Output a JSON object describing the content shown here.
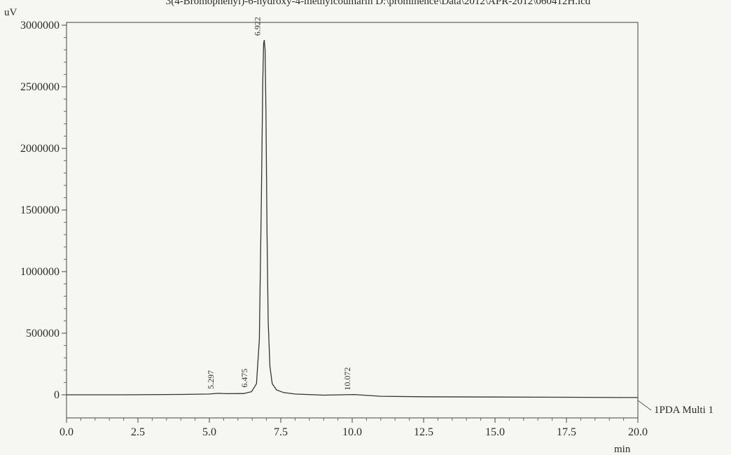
{
  "chart_data": {
    "type": "line",
    "title": "3(4-Bromophenyl)-6-hydroxy-4-methylcoumarin D:\\prominence\\Data\\2012\\APR-2012\\060412H.lcd",
    "ylabel": "uV",
    "xlabel": "min",
    "xlim": [
      0.0,
      20.0
    ],
    "ylim": [
      -200000,
      3000000
    ],
    "x_ticks": [
      "0.0",
      "2.5",
      "5.0",
      "7.5",
      "10.0",
      "12.5",
      "15.0",
      "17.5",
      "20.0"
    ],
    "y_ticks": [
      "0",
      "500000",
      "1000000",
      "1500000",
      "2000000",
      "2500000",
      "3000000"
    ],
    "y_tick_values": [
      0,
      500000,
      1000000,
      1500000,
      2000000,
      2500000,
      3000000
    ],
    "x_tick_values": [
      0.0,
      2.5,
      5.0,
      7.5,
      10.0,
      12.5,
      15.0,
      17.5,
      20.0
    ],
    "series": [
      {
        "name": "1PDA Multi 1",
        "x": [
          0.0,
          2.0,
          4.0,
          5.0,
          5.297,
          5.6,
          6.2,
          6.475,
          6.65,
          6.75,
          6.82,
          6.87,
          6.9,
          6.922,
          6.95,
          6.98,
          7.02,
          7.06,
          7.12,
          7.2,
          7.35,
          7.6,
          8.0,
          9.0,
          10.072,
          11.0,
          12.5,
          15.0,
          17.5,
          19.5,
          20.0
        ],
        "y": [
          0,
          0,
          3000,
          6000,
          12000,
          9000,
          10000,
          25000,
          90000,
          450000,
          1600000,
          2550000,
          2850000,
          2880000,
          2800000,
          2300000,
          1300000,
          600000,
          230000,
          90000,
          40000,
          18000,
          6000,
          -3000,
          2000,
          -12000,
          -16000,
          -18000,
          -20000,
          -22000,
          -22000
        ]
      }
    ],
    "peaks": [
      {
        "label": "5.297",
        "x": 5.297
      },
      {
        "label": "6.475",
        "x": 6.475
      },
      {
        "label": "6.922",
        "x": 6.922
      },
      {
        "label": "10.072",
        "x": 10.072
      }
    ],
    "grid": false
  }
}
